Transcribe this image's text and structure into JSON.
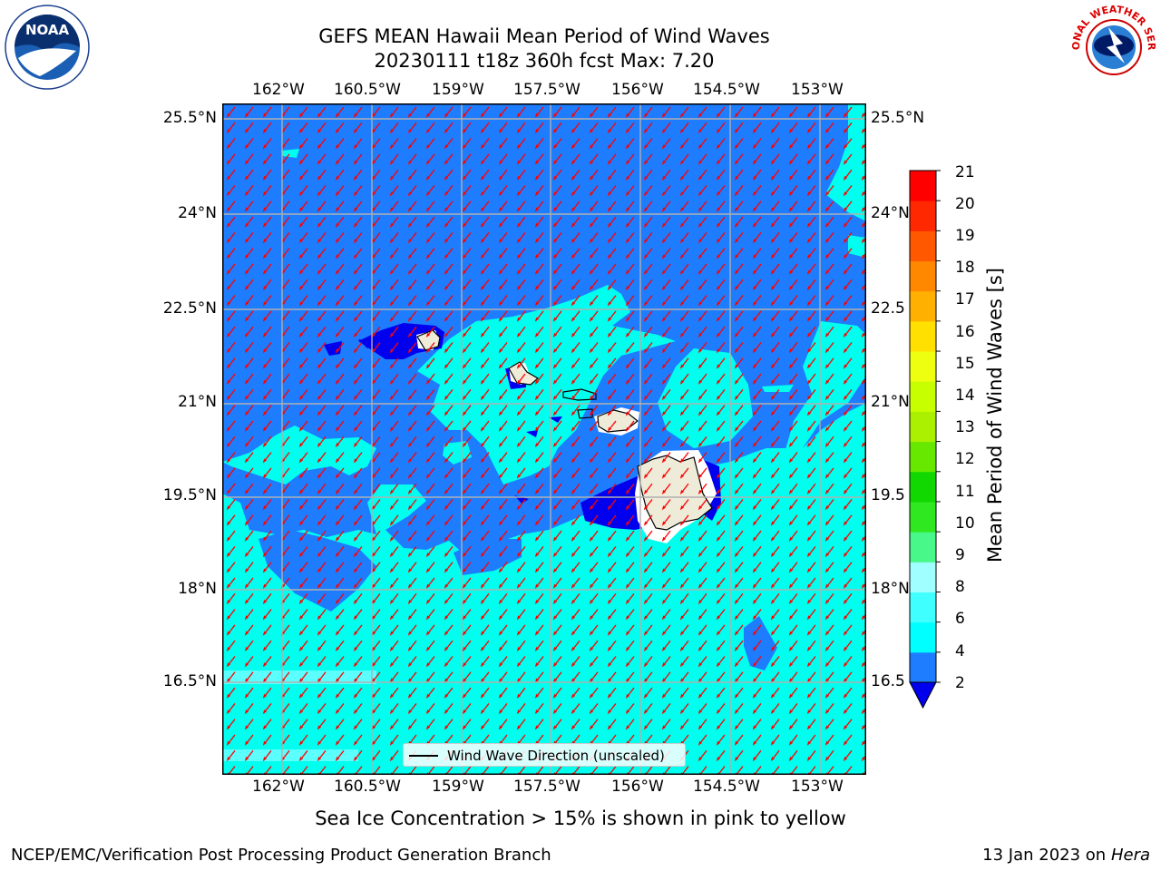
{
  "title": {
    "line1": "GEFS MEAN Hawaii Mean Period of Wind Waves",
    "line2": "20230111 t18z 360h fcst   Max: 7.20"
  },
  "logos": {
    "left": "NOAA",
    "right": "NATIONAL WEATHER SERVICE"
  },
  "map": {
    "lon_ticks": [
      "162°W",
      "160.5°W",
      "159°W",
      "157.5°W",
      "156°W",
      "154.5°W",
      "153°W"
    ],
    "lat_ticks": [
      "25.5°N",
      "24°N",
      "22.5°N",
      "21°N",
      "19.5°N",
      "18°N",
      "16.5°N"
    ],
    "lat_ticks_right": [
      "25.5°N",
      "24°N",
      "22.5",
      "21°N",
      "19.5",
      "18°N",
      "16.5"
    ],
    "legend_label": "Wind Wave Direction (unscaled)",
    "colors": {
      "deep_blue": "#0000ee",
      "blue": "#1e7cff",
      "cyan": "#00ffee",
      "land": "#eeebd9",
      "grid": "#b0b0b0",
      "arrow": "#ff0000"
    }
  },
  "colorbar": {
    "label": "Mean Period of Wind Waves [s]",
    "ticks": [
      "2",
      "4",
      "6",
      "8",
      "9",
      "10",
      "11",
      "12",
      "13",
      "14",
      "15",
      "16",
      "17",
      "18",
      "19",
      "20",
      "21"
    ],
    "colors": [
      "#0000ee",
      "#1e7cff",
      "#00ffff",
      "#40ffff",
      "#a0ffff",
      "#48f888",
      "#30e820",
      "#10d800",
      "#66e800",
      "#aaf000",
      "#c8ff00",
      "#eeff10",
      "#ffe000",
      "#ffb000",
      "#ff8800",
      "#ff5800",
      "#ff2800",
      "#ff0000"
    ]
  },
  "caption": "Sea Ice Concentration > 15% is shown in pink to yellow",
  "footer": {
    "left": "NCEP/EMC/Verification Post Processing Product Generation Branch",
    "right_date": "13 Jan 2023 on ",
    "right_host": "Hera"
  }
}
